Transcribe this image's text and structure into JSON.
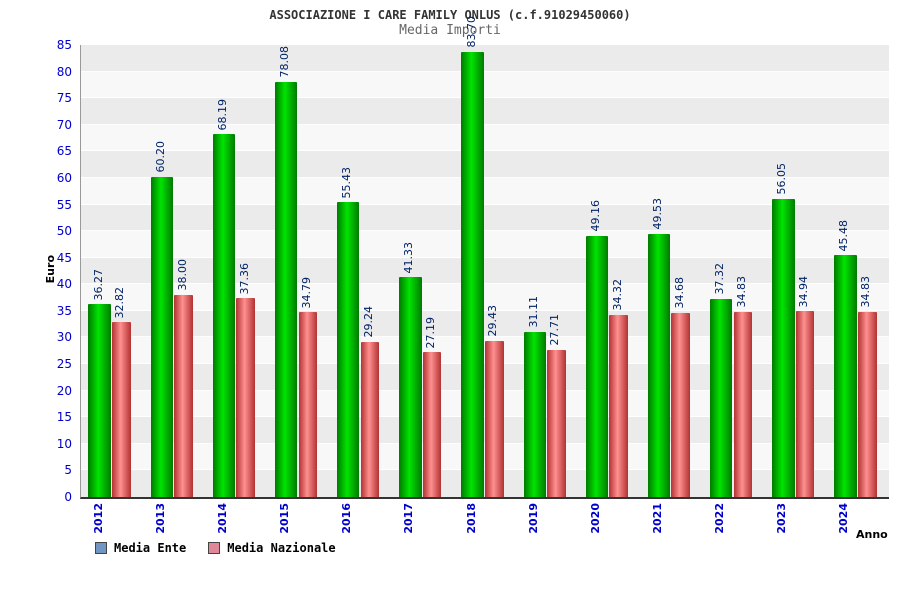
{
  "header": {
    "title": "ASSOCIAZIONE I CARE FAMILY ONLUS (c.f.91029450060)",
    "subtitle": "Media Importi"
  },
  "chart_data": {
    "type": "bar",
    "title": "ASSOCIAZIONE I CARE FAMILY ONLUS (c.f.91029450060)",
    "subtitle": "Media Importi",
    "xlabel": "Anno",
    "ylabel": "Euro",
    "ylim": [
      0,
      85
    ],
    "ytick_step": 5,
    "grid": "horizontal-bands",
    "legend_position": "bottom-left",
    "categories": [
      "2012",
      "2013",
      "2014",
      "2015",
      "2016",
      "2017",
      "2018",
      "2019",
      "2020",
      "2021",
      "2022",
      "2023",
      "2024"
    ],
    "series": [
      {
        "name": "Media Ente",
        "legend_color": "#7296c4",
        "bar_center": "#00e400",
        "bar_edge": "#007a00",
        "values": [
          36.27,
          60.2,
          68.19,
          78.08,
          55.43,
          41.33,
          83.7,
          31.11,
          49.16,
          49.53,
          37.32,
          56.05,
          45.48
        ]
      },
      {
        "name": "Media Nazionale",
        "legend_color": "#e08898",
        "bar_center": "#ff9090",
        "bar_edge": "#b23232",
        "values": [
          32.82,
          38.0,
          37.36,
          34.79,
          29.24,
          27.19,
          29.43,
          27.71,
          34.32,
          34.68,
          34.83,
          34.94,
          34.83
        ]
      }
    ],
    "value_label_color": "#002266",
    "tick_label_color": "#0000cc",
    "band_color_a": "#ebebeb",
    "band_color_b": "#f8f8f8"
  }
}
